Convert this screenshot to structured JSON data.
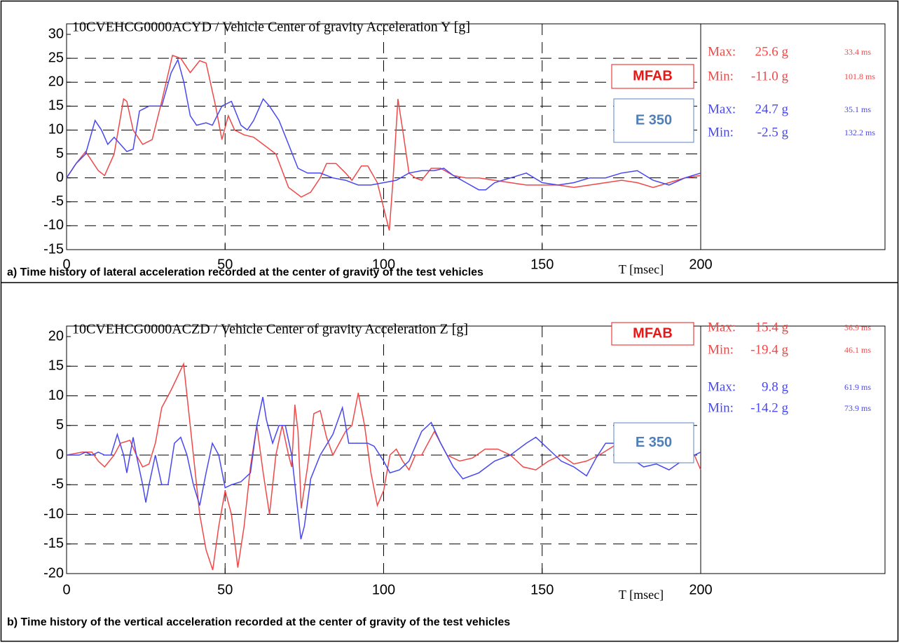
{
  "chart_data": [
    {
      "type": "line",
      "title": "10CVEHCG0000ACYD / Vehicle Center of gravity Acceleration Y [g]",
      "xlabel": "T [msec]",
      "caption": "a)  Time history of lateral acceleration recorded at the center of gravity of the test vehicles",
      "xlim": [
        0,
        200
      ],
      "ylim": [
        -15,
        30
      ],
      "xticks": [
        0,
        50,
        100,
        150,
        200
      ],
      "yticks": [
        -15,
        -10,
        -5,
        0,
        5,
        10,
        15,
        20,
        25,
        30
      ],
      "grid": true,
      "series": [
        {
          "name": "MFAB",
          "color": "#f04848",
          "x": [
            0,
            3,
            6,
            10,
            12,
            15,
            18,
            19,
            21,
            24,
            27,
            30,
            33.4,
            36,
            39,
            42,
            44,
            47,
            49,
            51,
            53,
            56,
            59,
            62,
            66,
            70,
            74,
            77,
            80,
            82,
            85,
            88,
            90,
            93,
            95,
            98,
            101.8,
            103,
            104.5,
            106,
            108,
            110,
            112,
            115,
            118,
            122,
            126,
            130,
            135,
            140,
            145,
            150,
            155,
            160,
            165,
            170,
            175,
            180,
            185,
            190,
            195,
            200
          ],
          "values": [
            0,
            3,
            5.5,
            1.5,
            0.5,
            5,
            16.5,
            16,
            10,
            7,
            8,
            16,
            25.6,
            25,
            22,
            24.5,
            24,
            15,
            8,
            13,
            10,
            9,
            8.5,
            7,
            5,
            -2,
            -4,
            -3,
            0,
            3,
            3,
            1,
            -0.5,
            2.5,
            2.5,
            -1,
            -11,
            0,
            16.5,
            10,
            1,
            0,
            -0.5,
            2,
            2,
            0.5,
            0,
            0,
            -0.5,
            -1,
            -1.5,
            -1.5,
            -1.5,
            -2,
            -1.5,
            -1,
            -0.5,
            -1,
            -2,
            -1,
            0,
            0.5
          ]
        },
        {
          "name": "E 350",
          "color": "#4848f0",
          "x": [
            0,
            3,
            6,
            9,
            11,
            13,
            15,
            17,
            19,
            21,
            23,
            26,
            30,
            33,
            35.1,
            37,
            39,
            41,
            44,
            46,
            49,
            52,
            55,
            57,
            59,
            62,
            64,
            67,
            70,
            73,
            76,
            80,
            84,
            88,
            92,
            96,
            100,
            104,
            108,
            112,
            116,
            119,
            122,
            126,
            130,
            132.2,
            135,
            140,
            145,
            150,
            155,
            160,
            165,
            170,
            175,
            180,
            185,
            190,
            195,
            200
          ],
          "values": [
            0,
            3,
            5,
            12,
            10,
            7,
            8.5,
            7,
            5.5,
            6,
            14,
            15,
            15,
            22,
            24.7,
            20,
            13,
            11,
            11.5,
            11,
            15,
            16,
            11,
            10,
            12,
            16.5,
            15,
            12,
            7,
            2,
            1,
            1,
            0,
            -0.5,
            -1.5,
            -1.5,
            -1,
            -0.5,
            1,
            1.5,
            1.5,
            2,
            0.5,
            -1,
            -2.5,
            -2.5,
            -1,
            0,
            1,
            -1,
            -1.5,
            -1,
            0,
            0,
            1,
            1.5,
            -0.5,
            -1.5,
            0,
            1
          ]
        }
      ],
      "stats": [
        {
          "label": "Max:",
          "value": "25.6 g",
          "time": "33.4 ms",
          "color": "#f04848"
        },
        {
          "label": "Min:",
          "value": "-11.0 g",
          "time": "101.8 ms",
          "color": "#f04848"
        },
        {
          "label": "Max:",
          "value": "24.7 g",
          "time": "35.1 ms",
          "color": "#4848f0"
        },
        {
          "label": "Min:",
          "value": "-2.5 g",
          "time": "132.2 ms",
          "color": "#4848f0"
        }
      ]
    },
    {
      "type": "line",
      "title": "10CVEHCG0000ACZD / Vehicle Center of gravity Acceleration Z [g]",
      "xlabel": "T [msec]",
      "caption": "b)  Time history of the vertical acceleration recorded at the center of gravity of the test vehicles",
      "xlim": [
        0,
        200
      ],
      "ylim": [
        -20,
        20
      ],
      "xticks": [
        0,
        50,
        100,
        150,
        200
      ],
      "yticks": [
        -20,
        -15,
        -10,
        -5,
        0,
        5,
        10,
        15,
        20
      ],
      "grid": true,
      "series": [
        {
          "name": "MFAB",
          "color": "#f04848",
          "x": [
            0,
            5,
            8,
            10,
            12,
            15,
            17,
            20,
            22,
            24,
            26,
            28,
            30,
            33,
            36.9,
            38,
            40,
            42,
            44,
            46.1,
            48,
            50,
            52,
            54,
            56,
            58,
            60,
            62,
            64,
            66,
            68,
            70,
            71,
            72,
            73,
            74,
            76,
            78,
            80,
            82,
            84,
            86,
            88,
            90,
            92,
            94,
            96,
            98,
            100,
            102,
            104,
            106,
            108,
            110,
            112,
            114,
            116,
            118,
            120,
            124,
            128,
            132,
            136,
            140,
            144,
            148,
            152,
            156,
            160,
            164,
            168,
            171,
            174,
            178,
            182,
            186,
            190,
            194,
            198,
            200
          ],
          "values": [
            0,
            0.5,
            0.5,
            -1,
            -2,
            0,
            2,
            2.5,
            0,
            -2,
            -1.5,
            2,
            8,
            11,
            15.4,
            10,
            0,
            -10,
            -16,
            -19.4,
            -12,
            -6,
            -10,
            -19,
            -12,
            -2,
            5,
            -3,
            -10,
            0,
            5,
            0,
            -2,
            8.5,
            4,
            -9,
            -2,
            7,
            7.5,
            3,
            0,
            2,
            4,
            5,
            10.5,
            5,
            -3,
            -8.5,
            -6,
            0,
            1,
            -1,
            -2.5,
            0,
            0,
            2,
            4,
            2,
            0,
            -1,
            -0.5,
            1,
            1,
            0,
            -2,
            -2.5,
            -1,
            0,
            -1.5,
            -1,
            0,
            1,
            2,
            1.5,
            0,
            -0.5,
            0,
            1,
            0,
            -2.5
          ]
        },
        {
          "name": "E 350",
          "color": "#4848f0",
          "x": [
            0,
            4,
            6,
            8,
            10,
            12,
            14,
            16,
            18,
            19,
            21,
            22,
            24,
            25,
            26,
            28,
            30,
            32,
            34,
            36,
            38,
            40,
            42,
            44,
            46,
            48,
            50,
            52,
            55,
            58,
            60,
            61.9,
            63,
            65,
            67,
            69,
            71,
            73.9,
            75,
            77,
            80,
            84,
            87,
            89,
            92,
            95,
            97,
            100,
            102,
            105,
            108,
            112,
            115,
            118,
            122,
            125,
            130,
            135,
            140,
            145,
            148,
            152,
            156,
            160,
            164,
            167,
            170,
            174,
            178,
            182,
            186,
            190,
            194,
            198,
            200
          ],
          "values": [
            0,
            0,
            0.5,
            0,
            0.5,
            0,
            0,
            3.5,
            0,
            -3,
            3,
            0,
            -5,
            -8,
            -5,
            0,
            -5,
            -5,
            2,
            3,
            0,
            -5,
            -8.5,
            -3,
            2,
            0,
            -5.5,
            -5,
            -4.5,
            -3,
            5,
            9.8,
            6,
            2,
            5,
            5,
            0,
            -14.2,
            -12,
            -4,
            0,
            3.5,
            8,
            2,
            2,
            2,
            1.5,
            -1,
            -3,
            -2.5,
            -1,
            4,
            5.5,
            2,
            -2,
            -4,
            -3,
            -1,
            0,
            2,
            3,
            1,
            -1,
            -2,
            -3.5,
            -0.5,
            2,
            2,
            -0.5,
            -2,
            -1.5,
            -2.5,
            -1,
            0,
            0.5
          ]
        }
      ],
      "stats": [
        {
          "label": "Max:",
          "value": "15.4 g",
          "time": "36.9 ms",
          "color": "#f04848"
        },
        {
          "label": "Min:",
          "value": "-19.4 g",
          "time": "46.1 ms",
          "color": "#f04848"
        },
        {
          "label": "Max:",
          "value": "9.8 g",
          "time": "61.9 ms",
          "color": "#4848f0"
        },
        {
          "label": "Min:",
          "value": "-14.2 g",
          "time": "73.9 ms",
          "color": "#4848f0"
        }
      ]
    }
  ]
}
